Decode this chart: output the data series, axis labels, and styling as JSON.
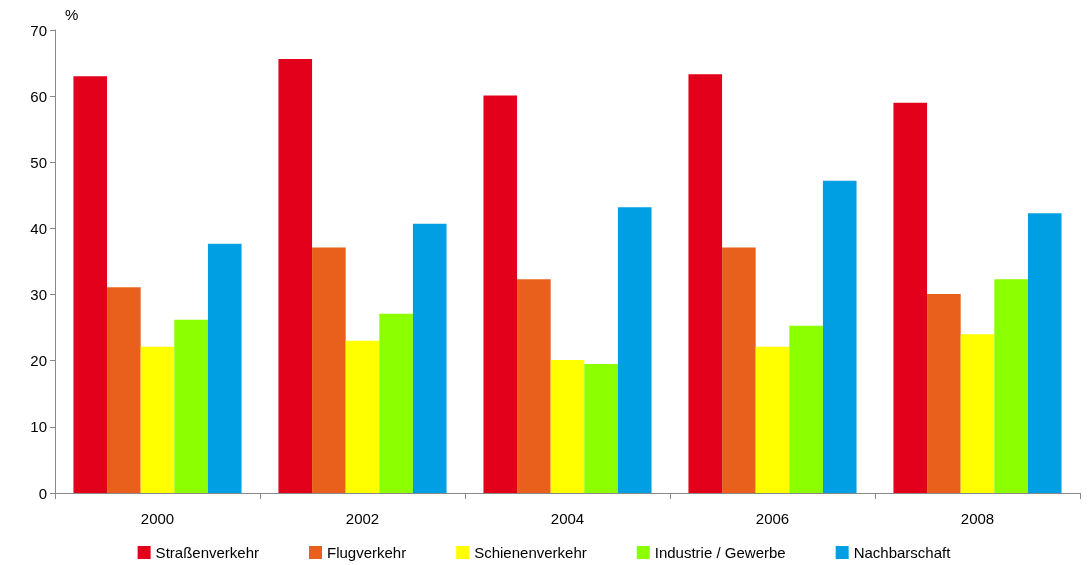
{
  "chart_data": {
    "type": "bar",
    "ylabel": "%",
    "categories": [
      "2000",
      "2002",
      "2004",
      "2006",
      "2008"
    ],
    "series": [
      {
        "name": "Straßenverkehr",
        "color": "#e2001a",
        "values": [
          63.0,
          65.6,
          60.1,
          63.3,
          59.0
        ]
      },
      {
        "name": "Flugverkehr",
        "color": "#e8601c",
        "values": [
          31.1,
          37.1,
          32.3,
          37.1,
          30.1
        ]
      },
      {
        "name": "Schienenverkehr",
        "color": "#ffff00",
        "values": [
          22.1,
          23.0,
          20.1,
          22.1,
          24.0
        ]
      },
      {
        "name": "Industrie / Gewerbe",
        "color": "#8cff00",
        "values": [
          26.2,
          27.1,
          19.5,
          25.3,
          32.3
        ]
      },
      {
        "name": "Nachbarschaft",
        "color": "#009fe3",
        "values": [
          37.7,
          40.7,
          43.2,
          47.2,
          42.3
        ]
      }
    ],
    "ylim": [
      0,
      70
    ],
    "yticks": [
      0,
      10,
      20,
      30,
      40,
      50,
      60,
      70
    ],
    "grid": false,
    "legend": "bottom"
  }
}
